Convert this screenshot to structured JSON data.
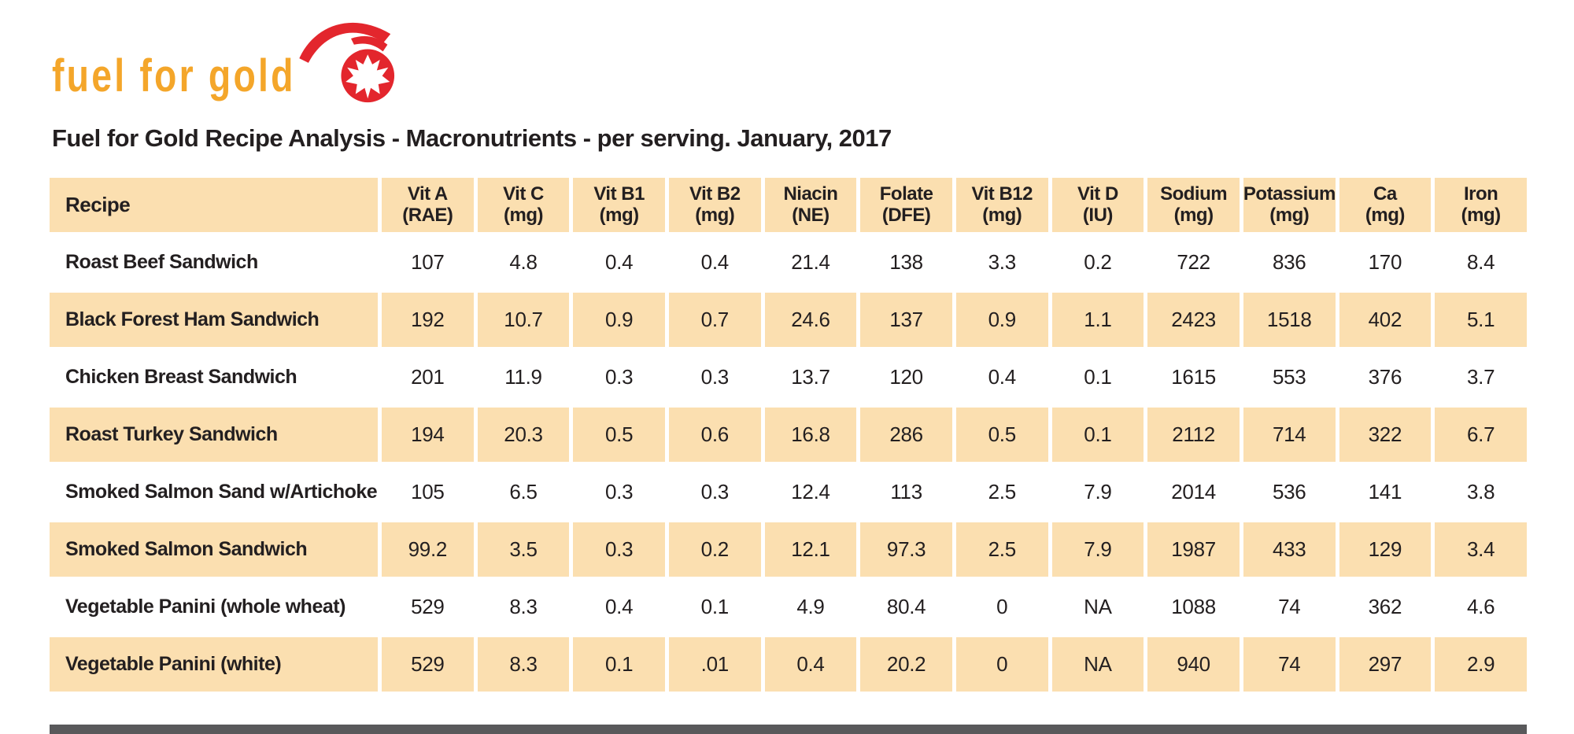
{
  "logo": {
    "text": "fuel for gold",
    "icon": "maple-leaf-comet-icon"
  },
  "title": "Fuel for Gold Recipe Analysis - Macronutrients - per serving. January, 2017",
  "table": {
    "columns": [
      {
        "label": "Recipe",
        "unit": ""
      },
      {
        "label": "Vit A",
        "unit": "(RAE)"
      },
      {
        "label": "Vit C",
        "unit": "(mg)"
      },
      {
        "label": "Vit B1",
        "unit": "(mg)"
      },
      {
        "label": "Vit B2",
        "unit": "(mg)"
      },
      {
        "label": "Niacin",
        "unit": "(NE)"
      },
      {
        "label": "Folate",
        "unit": "(DFE)"
      },
      {
        "label": "Vit B12",
        "unit": "(mg)"
      },
      {
        "label": "Vit D",
        "unit": "(IU)"
      },
      {
        "label": "Sodium",
        "unit": "(mg)"
      },
      {
        "label": "Potassium",
        "unit": "(mg)"
      },
      {
        "label": "Ca",
        "unit": "(mg)"
      },
      {
        "label": "Iron",
        "unit": "(mg)"
      }
    ],
    "rows": [
      {
        "recipe": "Roast Beef Sandwich",
        "values": [
          "107",
          "4.8",
          "0.4",
          "0.4",
          "21.4",
          "138",
          "3.3",
          "0.2",
          "722",
          "836",
          "170",
          "8.4"
        ]
      },
      {
        "recipe": "Black Forest Ham Sandwich",
        "values": [
          "192",
          "10.7",
          "0.9",
          "0.7",
          "24.6",
          "137",
          "0.9",
          "1.1",
          "2423",
          "1518",
          "402",
          "5.1"
        ]
      },
      {
        "recipe": "Chicken Breast Sandwich",
        "values": [
          "201",
          "11.9",
          "0.3",
          "0.3",
          "13.7",
          "120",
          "0.4",
          "0.1",
          "1615",
          "553",
          "376",
          "3.7"
        ]
      },
      {
        "recipe": "Roast Turkey Sandwich",
        "values": [
          "194",
          "20.3",
          "0.5",
          "0.6",
          "16.8",
          "286",
          "0.5",
          "0.1",
          "2112",
          "714",
          "322",
          "6.7"
        ]
      },
      {
        "recipe": "Smoked Salmon Sand w/Artichoke",
        "values": [
          "105",
          "6.5",
          "0.3",
          "0.3",
          "12.4",
          "113",
          "2.5",
          "7.9",
          "2014",
          "536",
          "141",
          "3.8"
        ]
      },
      {
        "recipe": "Smoked Salmon Sandwich",
        "values": [
          "99.2",
          "3.5",
          "0.3",
          "0.2",
          "12.1",
          "97.3",
          "2.5",
          "7.9",
          "1987",
          "433",
          "129",
          "3.4"
        ]
      },
      {
        "recipe": "Vegetable Panini (whole wheat)",
        "values": [
          "529",
          "8.3",
          "0.4",
          "0.1",
          "4.9",
          "80.4",
          "0",
          "NA",
          "1088",
          "74",
          "362",
          "4.6"
        ]
      },
      {
        "recipe": "Vegetable Panini (white)",
        "values": [
          "529",
          "8.3",
          "0.1",
          ".01",
          "0.4",
          "20.2",
          "0",
          "NA",
          "940",
          "74",
          "297",
          "2.9"
        ]
      }
    ]
  },
  "colors": {
    "band": "#FBDFB0",
    "logo_gold": "#F4A62A",
    "logo_red": "#E3262D",
    "text": "#231F20",
    "bottom_strip": "#59595B"
  }
}
